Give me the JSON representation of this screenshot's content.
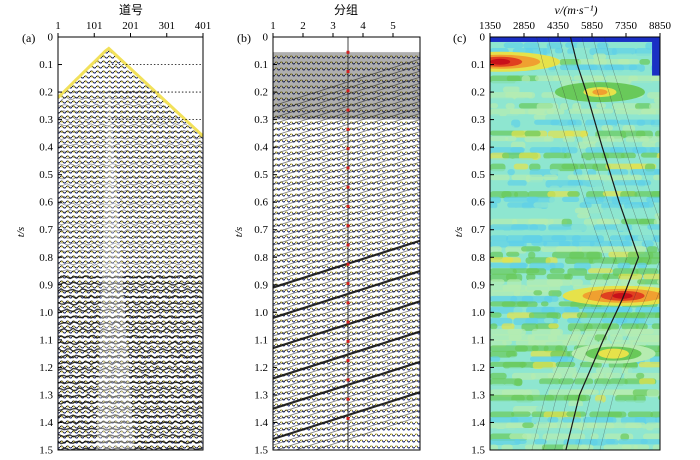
{
  "panels": [
    {
      "id": "a",
      "panel_label": "(a)",
      "top_axis_title": "道号",
      "left_axis_title": "t/s",
      "x_ticks": [
        "1",
        "101",
        "201",
        "301",
        "401"
      ],
      "y_ticks": [
        "0",
        "0.1",
        "0.2",
        "0.3",
        "0.4",
        "0.5",
        "0.6",
        "0.7",
        "0.8",
        "0.9",
        "1.0",
        "1.1",
        "1.2",
        "1.3",
        "1.4",
        "1.5"
      ],
      "kind": "seismic shot gather (wiggle-variable area)",
      "x_range": [
        1,
        401
      ],
      "t_range": [
        0,
        1.5
      ],
      "first_break_apex": {
        "trace": 140,
        "t": 0.04
      },
      "first_break_ends": [
        {
          "trace": 1,
          "t": 0.22
        },
        {
          "trace": 401,
          "t": 0.36
        }
      ],
      "dotted_reference_lines_t": [
        0.1,
        0.2,
        0.3
      ],
      "colors": {
        "fill": "#f2e15a",
        "wiggle": "#111111",
        "trough": "#2d3e9e"
      }
    },
    {
      "id": "b",
      "panel_label": "(b)",
      "top_axis_title": "分组",
      "left_axis_title": "t/s",
      "x_ticks": [
        "1",
        "2",
        "3",
        "4",
        "5"
      ],
      "y_ticks": [
        "0",
        "0.1",
        "0.2",
        "0.3",
        "0.4",
        "0.5",
        "0.6",
        "0.7",
        "0.8",
        "0.9",
        "1.0",
        "1.1",
        "1.2",
        "1.3",
        "1.4",
        "1.5"
      ],
      "kind": "grouped gathers with NMO-style dipping events",
      "x_range": [
        1,
        5.9
      ],
      "t_range": [
        0,
        1.5
      ],
      "marker_line_x": 3.5,
      "marker_line_color": "#d02020",
      "colors": {
        "fill": "#f2e15a",
        "wiggle": "#111111",
        "trough": "#2d3e9e"
      }
    },
    {
      "id": "c",
      "panel_label": "(c)",
      "top_axis_title": "v/(m·s⁻¹)",
      "left_axis_title": "t/s",
      "x_ticks": [
        "1350",
        "2850",
        "4350",
        "5850",
        "7350",
        "8850"
      ],
      "y_ticks": [
        "0",
        "0.1",
        "0.2",
        "0.3",
        "0.4",
        "0.5",
        "0.6",
        "0.7",
        "0.8",
        "0.9",
        "1.0",
        "1.1",
        "1.2",
        "1.3",
        "1.4",
        "1.5"
      ],
      "kind": "velocity spectrum (semblance contour)",
      "x_range": [
        1350,
        8850
      ],
      "t_range": [
        0,
        1.5
      ],
      "picked_velocity_curve": [
        {
          "t": 0.0,
          "v": 4900
        },
        {
          "t": 0.1,
          "v": 5200
        },
        {
          "t": 0.2,
          "v": 5600
        },
        {
          "t": 0.4,
          "v": 6300
        },
        {
          "t": 0.6,
          "v": 7050
        },
        {
          "t": 0.8,
          "v": 7900
        },
        {
          "t": 0.95,
          "v": 7200
        },
        {
          "t": 1.1,
          "v": 6350
        },
        {
          "t": 1.3,
          "v": 5300
        },
        {
          "t": 1.5,
          "v": 4700
        }
      ],
      "energy_peaks": [
        {
          "t": 0.09,
          "v": 1800,
          "strength": 1.0
        },
        {
          "t": 0.2,
          "v": 6200,
          "strength": 0.75
        },
        {
          "t": 0.94,
          "v": 7200,
          "strength": 1.0
        },
        {
          "t": 1.15,
          "v": 6800,
          "strength": 0.7
        }
      ],
      "colormap": [
        "#1a2fc4",
        "#3b8fe0",
        "#5fd0e8",
        "#8ee6d0",
        "#b6ecb0",
        "#69c95a",
        "#e6e24a",
        "#f0a030",
        "#e04020",
        "#c8101a"
      ]
    }
  ]
}
